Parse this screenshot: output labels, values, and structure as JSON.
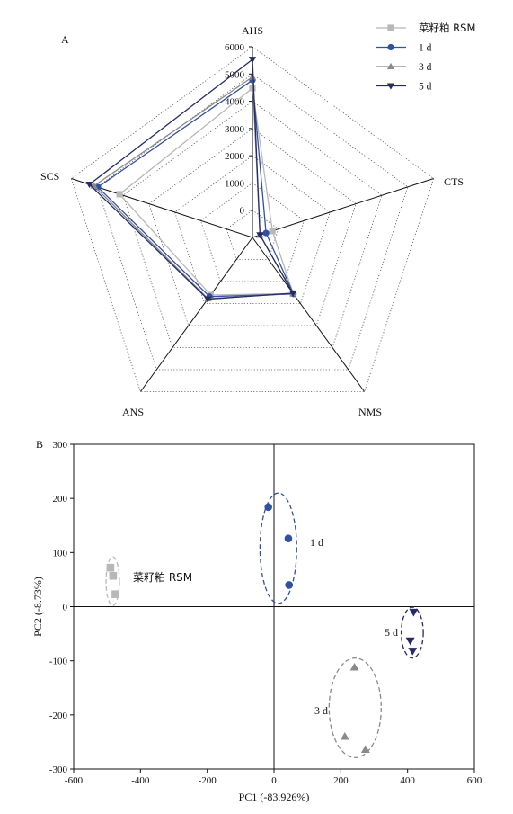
{
  "colors": {
    "rsm": "#b8b8b8",
    "d1": "#3150a0",
    "d3": "#8a8a8a",
    "d5": "#262a66"
  },
  "chart_data": [
    {
      "panel": "A",
      "type": "radar",
      "axes": [
        "AHS",
        "CTS",
        "NMS",
        "ANS",
        "SCS"
      ],
      "rlim": [
        0,
        6000
      ],
      "rticks": [
        "0",
        "1000",
        "2000",
        "3000",
        "4000",
        "5000",
        "6000"
      ],
      "grid": "dotted pentagons",
      "legend_position": "top-right",
      "series": [
        {
          "name": "菜籽粕 RSM",
          "key": "rsm",
          "marker": "square",
          "values": [
            4700,
            660,
            2180,
            2240,
            4400
          ]
        },
        {
          "name": "1 d",
          "key": "d1",
          "marker": "circle",
          "values": [
            4950,
            450,
            2200,
            2300,
            5120
          ]
        },
        {
          "name": "3 d",
          "key": "d3",
          "marker": "triangle",
          "values": [
            5050,
            250,
            2180,
            2380,
            5250
          ]
        },
        {
          "name": "5 d",
          "key": "d5",
          "marker": "triangle-down",
          "values": [
            5600,
            250,
            2170,
            2400,
            5400
          ]
        }
      ]
    },
    {
      "panel": "B",
      "type": "scatter",
      "xlabel": "PC1 (-83.926%)",
      "ylabel": "PC2 (-8.73%)",
      "xlim": [
        -600,
        600
      ],
      "ylim": [
        -300,
        300
      ],
      "xticks": [
        "-600",
        "-400",
        "-200",
        "0",
        "200",
        "400",
        "600"
      ],
      "yticks": [
        "300",
        "200",
        "100",
        "0",
        "-100",
        "-200",
        "-300"
      ],
      "zero_lines": true,
      "groups": [
        {
          "label": "菜籽粕 RSM",
          "key": "rsm",
          "marker": "square",
          "points": [
            [
              -490,
              72
            ],
            [
              -482,
              57
            ],
            [
              -475,
              23
            ]
          ],
          "ellipse": {
            "cx": -483,
            "cy": 47,
            "rx": 20,
            "ry": 45
          }
        },
        {
          "label": "1 d",
          "key": "d1",
          "marker": "circle",
          "points": [
            [
              -17,
              184
            ],
            [
              43,
              126
            ],
            [
              45,
              40
            ]
          ],
          "ellipse": {
            "cx": 13,
            "cy": 108,
            "rx": 55,
            "ry": 102
          }
        },
        {
          "label": "5 d",
          "key": "d5",
          "marker": "triangle-down",
          "points": [
            [
              418,
              -10
            ],
            [
              408,
              -63
            ],
            [
              415,
              -82
            ]
          ],
          "ellipse": {
            "cx": 414,
            "cy": -48,
            "rx": 33,
            "ry": 47
          }
        },
        {
          "label": "3 d",
          "key": "d3",
          "marker": "triangle",
          "points": [
            [
              241,
              -112
            ],
            [
              212,
              -240
            ],
            [
              274,
              -264
            ]
          ],
          "ellipse": {
            "cx": 243,
            "cy": -187,
            "rx": 78,
            "ry": 92
          }
        }
      ]
    }
  ]
}
